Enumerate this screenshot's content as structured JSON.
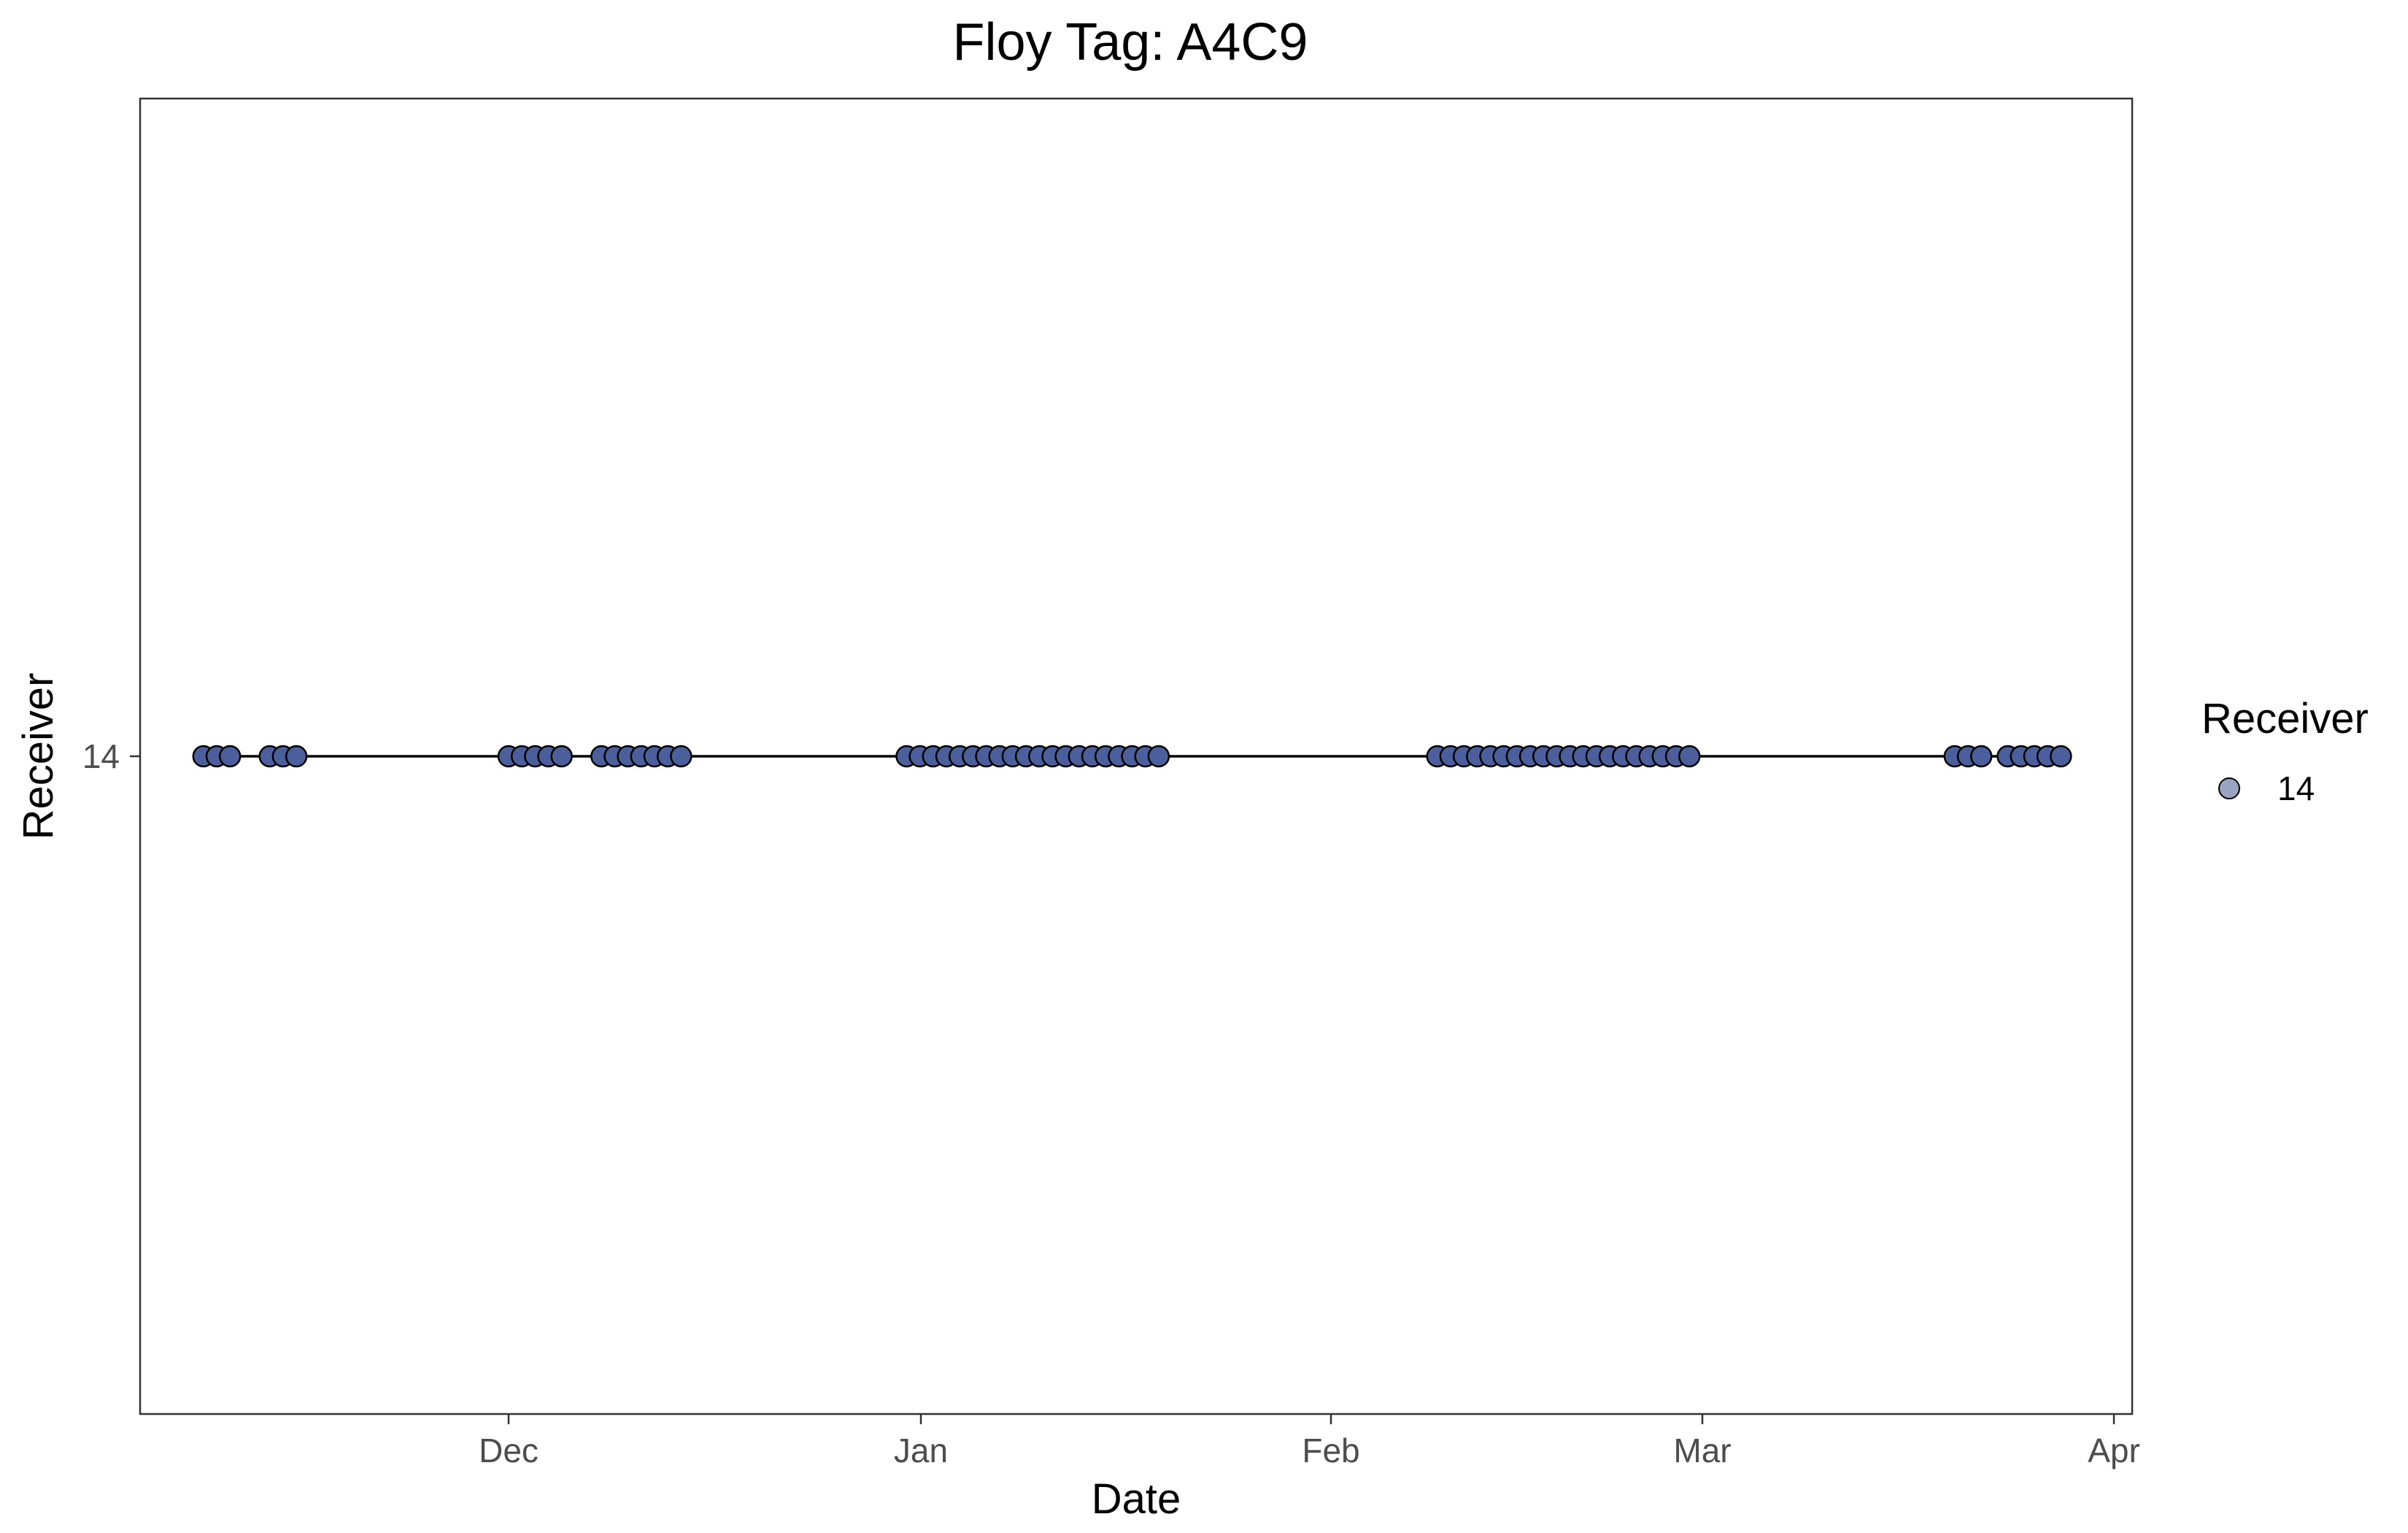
{
  "chart_data": {
    "type": "scatter",
    "title": "Floy Tag: A4C9",
    "xlabel": "Date",
    "ylabel": "Receiver",
    "x_ticks": [
      "Dec",
      "Jan",
      "Feb",
      "Mar",
      "Apr"
    ],
    "y_ticks": [
      "14"
    ],
    "y_categories": [
      "14"
    ],
    "legend": {
      "title": "Receiver",
      "entries": [
        "14"
      ],
      "placement": "right"
    },
    "grid": false,
    "connecting_line": true,
    "colors": {
      "point_fill": "#4a5f9c",
      "point_stroke": "#000000",
      "line": "#000000",
      "legend_point_fill": "#9aa3bf"
    },
    "series": [
      {
        "name": "14",
        "receiver": "14",
        "x": [
          "Nov 08",
          "Nov 09",
          "Nov 10",
          "Nov 13",
          "Nov 14",
          "Nov 15",
          "Dec 01",
          "Dec 02",
          "Dec 03",
          "Dec 04",
          "Dec 05",
          "Dec 08",
          "Dec 09",
          "Dec 10",
          "Dec 11",
          "Dec 12",
          "Dec 13",
          "Dec 14",
          "Dec 31",
          "Jan 01",
          "Jan 02",
          "Jan 03",
          "Jan 04",
          "Jan 05",
          "Jan 06",
          "Jan 07",
          "Jan 08",
          "Jan 09",
          "Jan 10",
          "Jan 11",
          "Jan 12",
          "Jan 13",
          "Jan 14",
          "Jan 15",
          "Jan 16",
          "Jan 17",
          "Jan 18",
          "Jan 19",
          "Feb 09",
          "Feb 10",
          "Feb 11",
          "Feb 12",
          "Feb 13",
          "Feb 14",
          "Feb 15",
          "Feb 16",
          "Feb 17",
          "Feb 18",
          "Feb 19",
          "Feb 20",
          "Feb 21",
          "Feb 22",
          "Feb 23",
          "Feb 24",
          "Feb 25",
          "Feb 26",
          "Feb 27",
          "Feb 28",
          "Mar 20",
          "Mar 21",
          "Mar 22",
          "Mar 24",
          "Mar 25",
          "Mar 26",
          "Mar 27",
          "Mar 28"
        ]
      }
    ]
  }
}
